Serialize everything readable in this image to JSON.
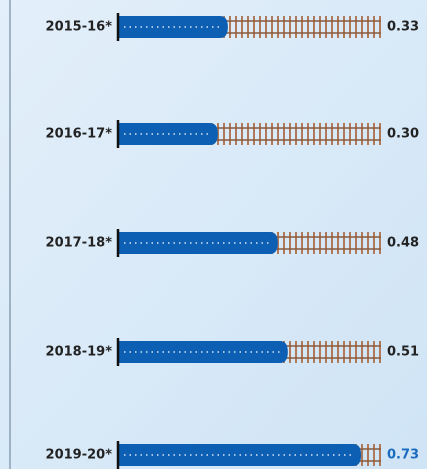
{
  "chart_data": {
    "type": "bar",
    "orientation": "horizontal",
    "categories": [
      "2015-16*",
      "2016-17*",
      "2017-18*",
      "2018-19*",
      "2019-20*"
    ],
    "values": [
      0.33,
      0.3,
      0.48,
      0.51,
      0.73
    ],
    "value_labels": [
      "0.33",
      "0.30",
      "0.48",
      "0.51",
      "0.73"
    ],
    "color": "#0d5fb3"
  }
}
